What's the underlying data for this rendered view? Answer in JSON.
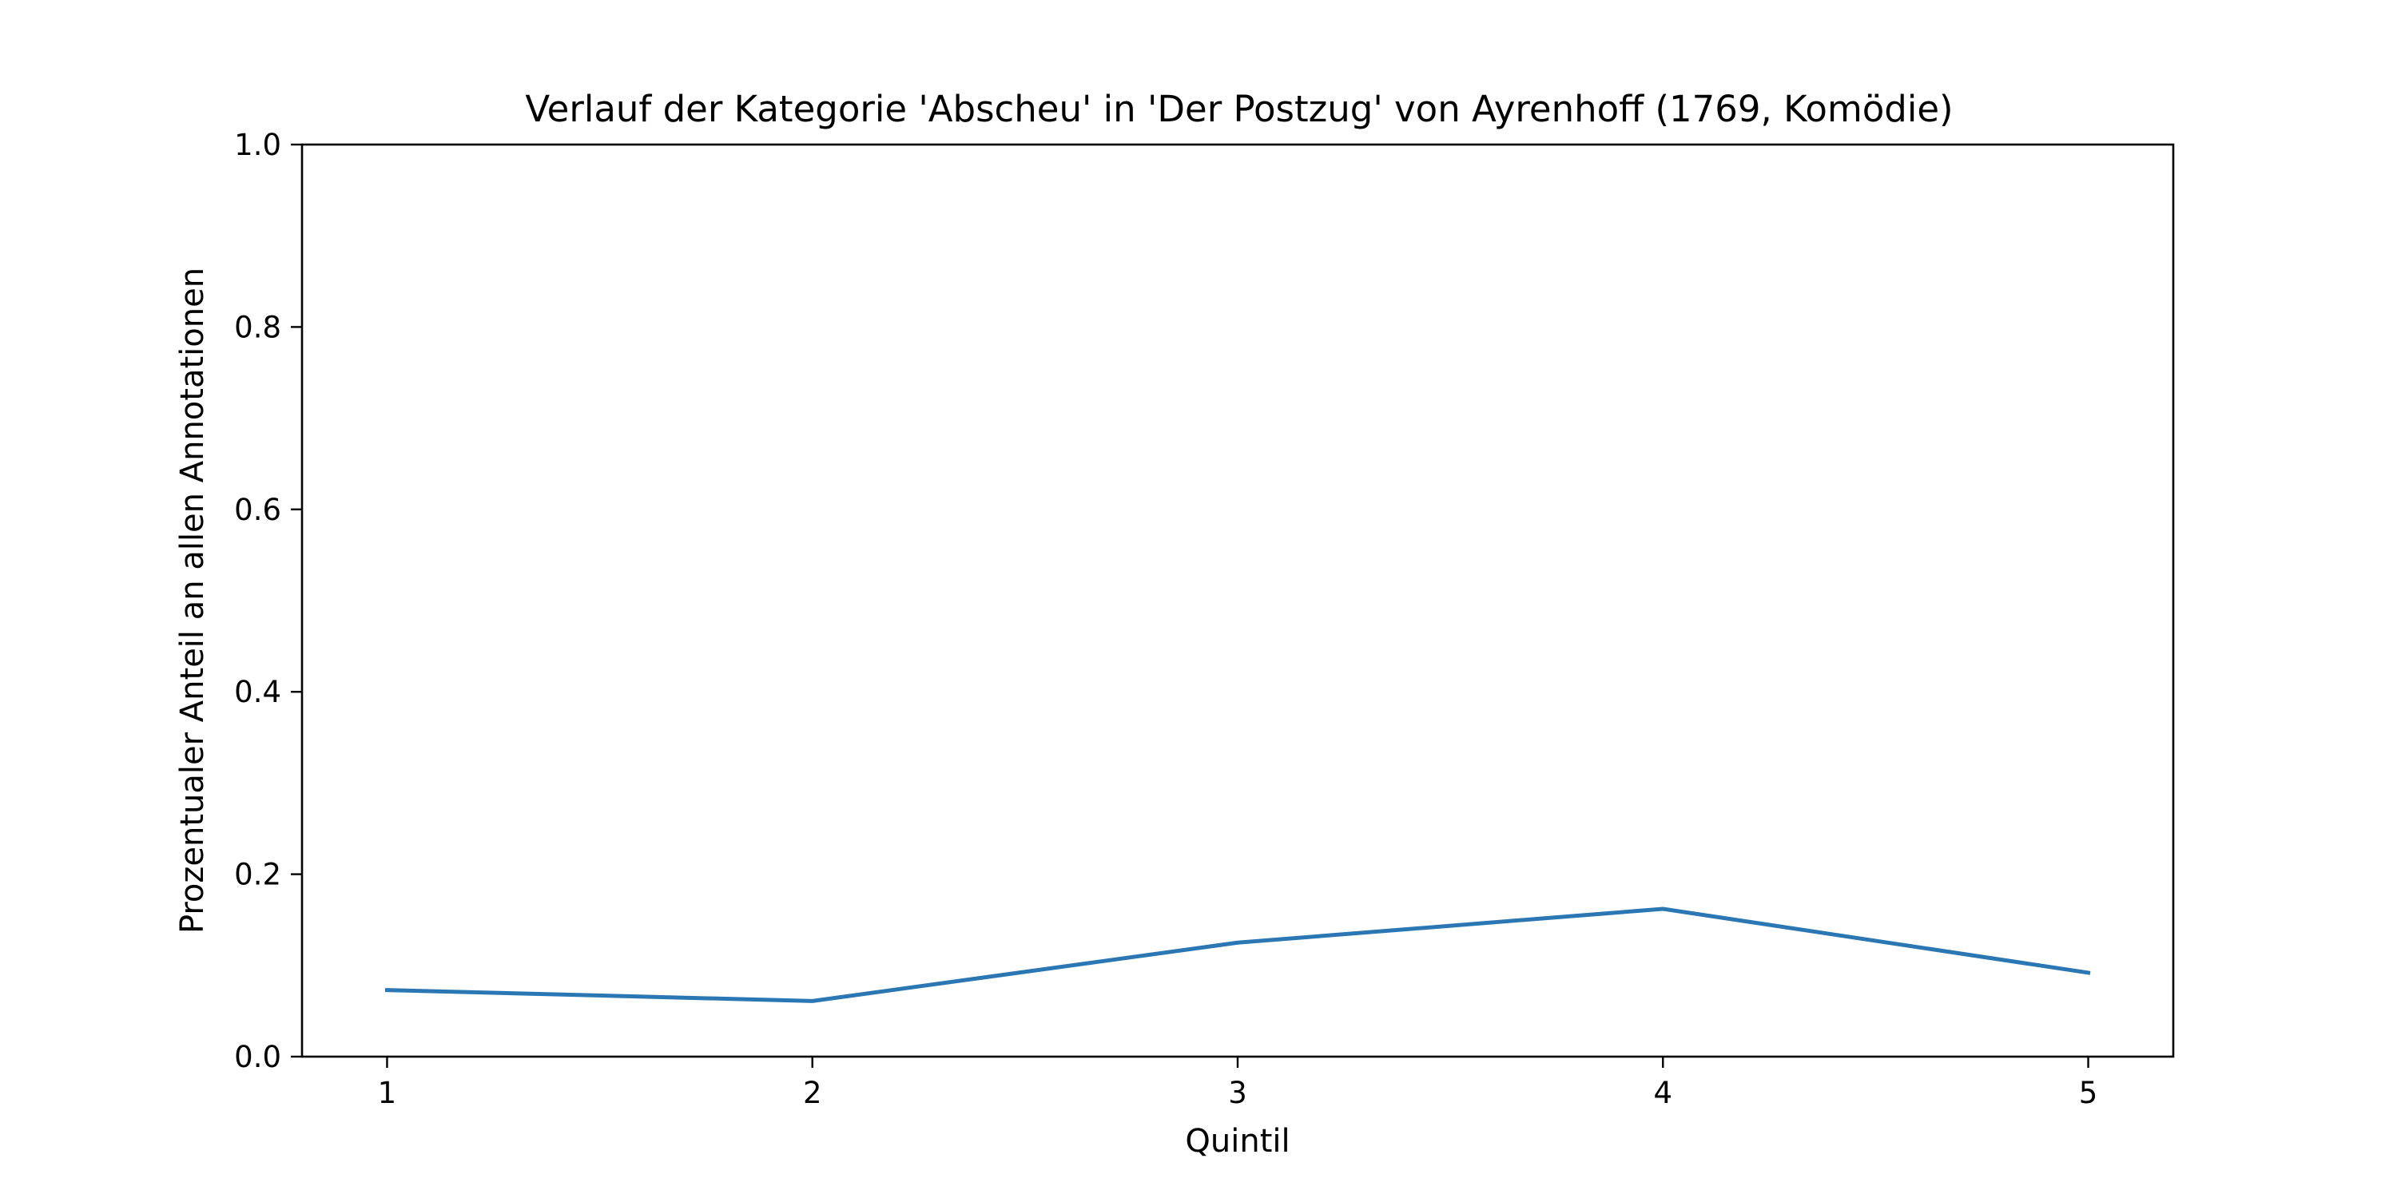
{
  "chart_data": {
    "type": "line",
    "title": "Verlauf der Kategorie 'Abscheu' in 'Der Postzug' von Ayrenhoff (1769, Komödie)",
    "xlabel": "Quintil",
    "ylabel": "Prozentualer Anteil an allen Annotationen",
    "x": [
      1,
      2,
      3,
      4,
      5
    ],
    "x_tick_labels": [
      "1",
      "2",
      "3",
      "4",
      "5"
    ],
    "xlim": [
      0.8,
      5.2
    ],
    "ylim": [
      0.0,
      1.0
    ],
    "y_ticks": [
      0.0,
      0.2,
      0.4,
      0.6,
      0.8,
      1.0
    ],
    "y_tick_labels": [
      "0.0",
      "0.2",
      "0.4",
      "0.6",
      "0.8",
      "1.0"
    ],
    "grid": false,
    "series": [
      {
        "color": "#2a77b4",
        "values": [
          0.073,
          0.061,
          0.125,
          0.162,
          0.092
        ]
      }
    ]
  }
}
